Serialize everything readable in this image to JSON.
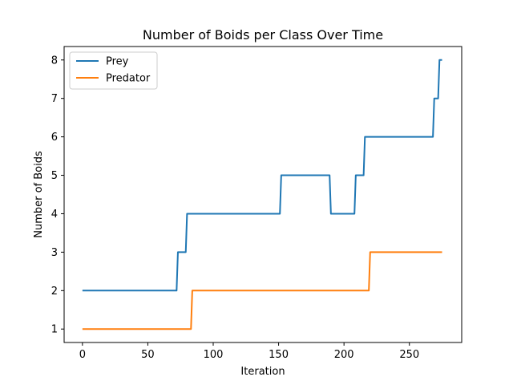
{
  "chart_data": {
    "type": "line",
    "title": "Number of Boids per Class Over Time",
    "xlabel": "Iteration",
    "ylabel": "Number of Boids",
    "xlim": [
      -14,
      290
    ],
    "ylim": [
      0.65,
      8.35
    ],
    "x_ticks": [
      0,
      50,
      100,
      150,
      200,
      250
    ],
    "y_ticks": [
      1,
      2,
      3,
      4,
      5,
      6,
      7,
      8
    ],
    "grid": false,
    "legend_position": "top-left",
    "series": [
      {
        "name": "Prey",
        "color": "#1f77b4",
        "points": [
          [
            0,
            2
          ],
          [
            72,
            2
          ],
          [
            73,
            3
          ],
          [
            79,
            3
          ],
          [
            80,
            4
          ],
          [
            151,
            4
          ],
          [
            152,
            5
          ],
          [
            189,
            5
          ],
          [
            190,
            4
          ],
          [
            208,
            4
          ],
          [
            209,
            5
          ],
          [
            215,
            5
          ],
          [
            216,
            6
          ],
          [
            268,
            6
          ],
          [
            269,
            7
          ],
          [
            272,
            7
          ],
          [
            273,
            8
          ],
          [
            275,
            8
          ]
        ]
      },
      {
        "name": "Predator",
        "color": "#ff7f0e",
        "points": [
          [
            0,
            1
          ],
          [
            83,
            1
          ],
          [
            84,
            2
          ],
          [
            219,
            2
          ],
          [
            220,
            3
          ],
          [
            275,
            3
          ]
        ]
      }
    ]
  }
}
